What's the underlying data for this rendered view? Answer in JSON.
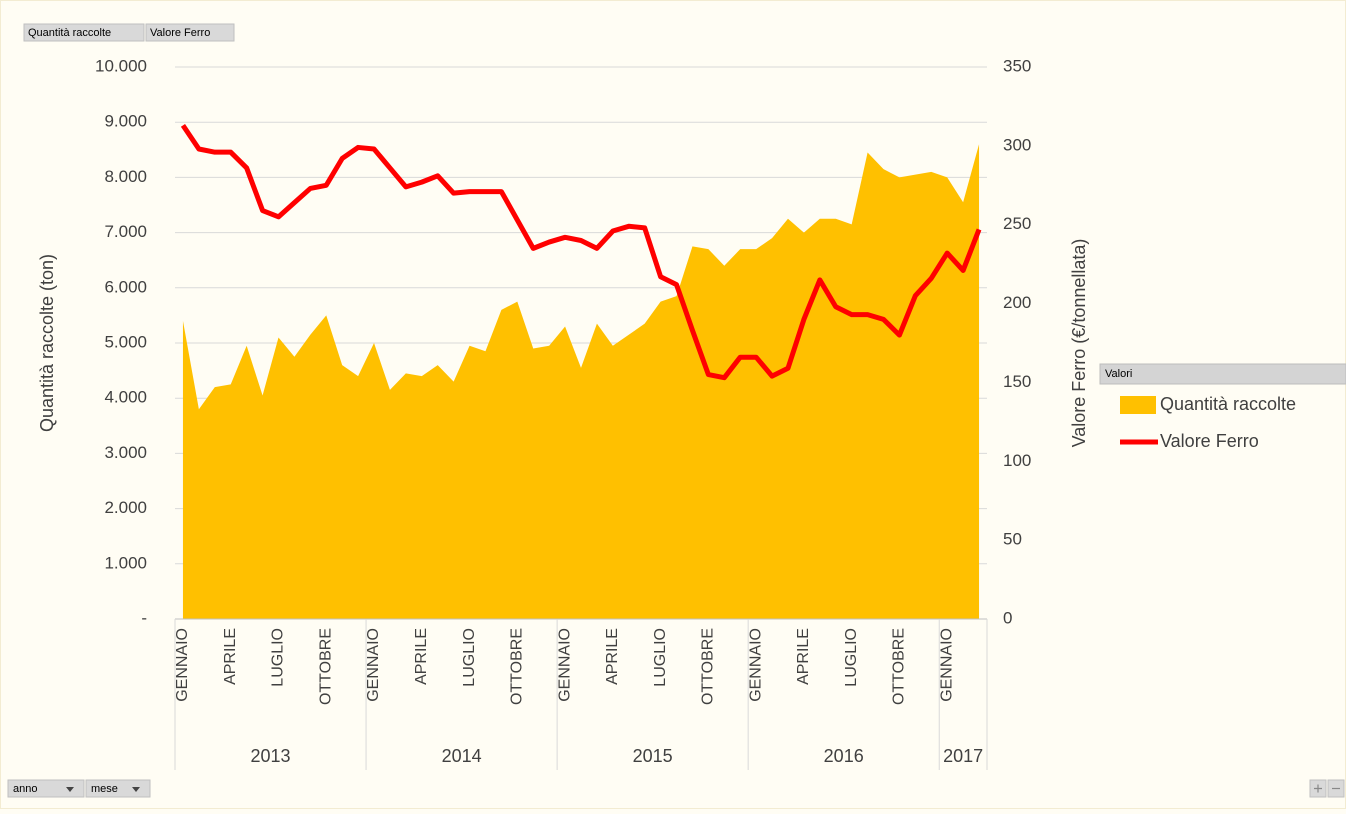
{
  "chart_data": {
    "type": "combo",
    "field_buttons": [
      "Quantità raccolte",
      "Valore Ferro"
    ],
    "axis_buttons": [
      "anno",
      "mese"
    ],
    "legend_title": "Valori",
    "ylabel": "Quantità raccolte (ton)",
    "y2label": "Valore Ferro (€/tonnellata)",
    "categories": [
      "GENNAIO",
      null,
      null,
      "APRILE",
      null,
      null,
      "LUGLIO",
      null,
      null,
      "OTTOBRE",
      null,
      null,
      "GENNAIO",
      null,
      null,
      "APRILE",
      null,
      null,
      "LUGLIO",
      null,
      null,
      "OTTOBRE",
      null,
      null,
      "GENNAIO",
      null,
      null,
      "APRILE",
      null,
      null,
      "LUGLIO",
      null,
      null,
      "OTTOBRE",
      null,
      null,
      "GENNAIO",
      null,
      null,
      "APRILE",
      null,
      null,
      "LUGLIO",
      null,
      null,
      "OTTOBRE",
      null,
      null,
      "GENNAIO",
      null,
      null
    ],
    "years": [
      "2013",
      "2014",
      "2015",
      "2016",
      "2017"
    ],
    "ylim": [
      0,
      10000
    ],
    "yticks": [
      {
        "value": 0,
        "label": "-"
      },
      {
        "value": 1000,
        "label": "1.000"
      },
      {
        "value": 2000,
        "label": "2.000"
      },
      {
        "value": 3000,
        "label": "3.000"
      },
      {
        "value": 4000,
        "label": "4.000"
      },
      {
        "value": 5000,
        "label": "5.000"
      },
      {
        "value": 6000,
        "label": "6.000"
      },
      {
        "value": 7000,
        "label": "7.000"
      },
      {
        "value": 8000,
        "label": "8.000"
      },
      {
        "value": 9000,
        "label": "9.000"
      },
      {
        "value": 10000,
        "label": "10.000"
      }
    ],
    "y2lim": [
      0,
      350
    ],
    "y2ticks": [
      0,
      50,
      100,
      150,
      200,
      250,
      300,
      350
    ],
    "grid": true,
    "legend": "right",
    "series": [
      {
        "name": "Quantità raccolte",
        "type": "area",
        "color": "#ffc000",
        "values": [
          5400,
          3800,
          4200,
          4250,
          4950,
          4050,
          5100,
          4750,
          5150,
          5500,
          4600,
          4400,
          5000,
          4150,
          4450,
          4400,
          4600,
          4300,
          4950,
          4850,
          5600,
          5750,
          4900,
          4950,
          5300,
          4550,
          5350,
          4950,
          5150,
          5350,
          5750,
          5850,
          6750,
          6700,
          6400,
          6700,
          6700,
          6900,
          7250,
          7000,
          7250,
          7250,
          7150,
          8450,
          8150,
          8000,
          8050,
          8100,
          8000,
          7550,
          8600
        ]
      },
      {
        "name": "Valore Ferro",
        "type": "line",
        "color": "#ff0000",
        "axis": "y2",
        "values": [
          313,
          298,
          296,
          296,
          286,
          259,
          255,
          264,
          273,
          275,
          292,
          299,
          298,
          286,
          274,
          277,
          281,
          270,
          271,
          271,
          271,
          253,
          235,
          239,
          242,
          240,
          235,
          246,
          249,
          248,
          217,
          212,
          183,
          155,
          153,
          166,
          166,
          154,
          159,
          190,
          215,
          198,
          193,
          193,
          190,
          180,
          205,
          216,
          232,
          221,
          247
        ]
      }
    ]
  }
}
